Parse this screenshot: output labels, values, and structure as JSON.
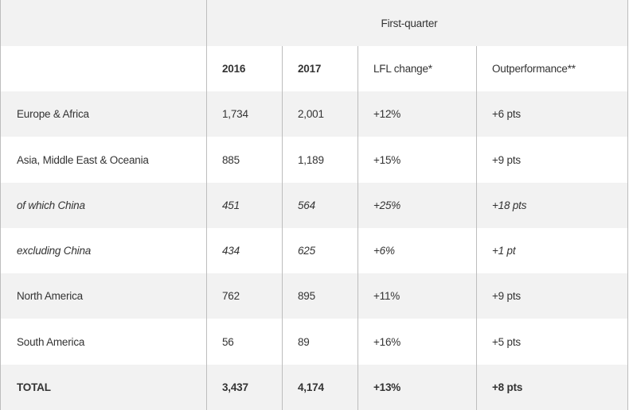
{
  "table": {
    "group_header": "First-quarter",
    "columns": [
      "",
      "2016",
      "2017",
      "LFL change*",
      "Outperformance**"
    ],
    "rows": [
      {
        "cells": [
          "Europe & Africa",
          "1,734",
          "2,001",
          "+12%",
          "+6 pts"
        ]
      },
      {
        "cells": [
          "Asia, Middle East & Oceania",
          "885",
          "1,189",
          "+15%",
          "+9 pts"
        ]
      },
      {
        "cells": [
          "of which China",
          "451",
          "564",
          "+25%",
          "+18 pts"
        ]
      },
      {
        "cells": [
          "excluding China",
          "434",
          "625",
          "+6%",
          "+1 pt"
        ]
      },
      {
        "cells": [
          "North America",
          "762",
          "895",
          "+11%",
          "+9 pts"
        ]
      },
      {
        "cells": [
          "South America",
          "56",
          "89",
          "+16%",
          "+5 pts"
        ]
      },
      {
        "cells": [
          "TOTAL",
          "3,437",
          "4,174",
          "+13%",
          "+8 pts"
        ]
      }
    ]
  },
  "colors": {
    "band": "#f2f2f2",
    "border": "#bdbdbd",
    "text": "#333333"
  }
}
